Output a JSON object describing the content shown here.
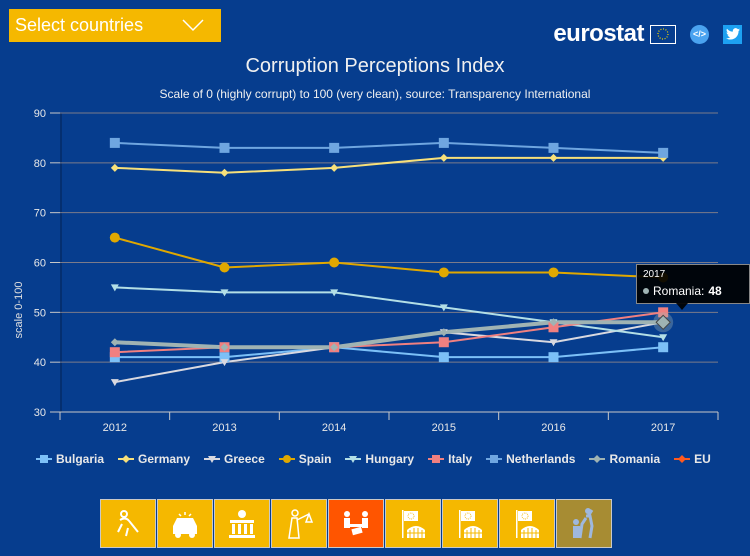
{
  "header": {
    "select_label": "Select countries",
    "brand": "eurostat",
    "embed_label": "</>",
    "title": "Corruption Perceptions Index",
    "subtitle": "Scale of 0 (highly corrupt) to 100 (very clean), source: Transparency International"
  },
  "tooltip": {
    "year": "2017",
    "series": "Romania",
    "value": "48",
    "label": "Romania:"
  },
  "tabs": [
    {
      "icon": "injured-person-icon",
      "state": "normal"
    },
    {
      "icon": "police-car-icon",
      "state": "normal"
    },
    {
      "icon": "bank-euro-icon",
      "state": "normal"
    },
    {
      "icon": "justice-scales-icon",
      "state": "normal"
    },
    {
      "icon": "bribe-table-icon",
      "state": "active"
    },
    {
      "icon": "eu-flag-parliament-icon",
      "state": "normal"
    },
    {
      "icon": "eu-flag-parliament-icon",
      "state": "normal"
    },
    {
      "icon": "eu-flag-parliament-icon",
      "state": "normal"
    },
    {
      "icon": "protest-person-icon",
      "state": "disabled"
    }
  ],
  "chart_data": {
    "type": "line",
    "title": "Corruption Perceptions Index",
    "subtitle": "Scale of 0 (highly corrupt) to 100 (very clean), source: Transparency International",
    "xlabel": "",
    "ylabel": "scale 0-100",
    "ylim": [
      30,
      90
    ],
    "yticks": [
      "30",
      "40",
      "50",
      "60",
      "70",
      "80",
      "90"
    ],
    "ytick_values": [
      30,
      40,
      50,
      60,
      70,
      80,
      90
    ],
    "categories": [
      "2012",
      "2013",
      "2014",
      "2015",
      "2016",
      "2017"
    ],
    "grid": true,
    "legend": "bottom",
    "series": [
      {
        "name": "Bulgaria",
        "color": "#7cc0f7",
        "marker": "square",
        "values": [
          41,
          41,
          43,
          41,
          41,
          43
        ]
      },
      {
        "name": "Germany",
        "color": "#f7e07a",
        "marker": "diamond",
        "values": [
          79,
          78,
          79,
          81,
          81,
          81
        ]
      },
      {
        "name": "Greece",
        "color": "#d9d9e0",
        "marker": "triangle-down",
        "values": [
          36,
          40,
          43,
          46,
          44,
          48
        ]
      },
      {
        "name": "Spain",
        "color": "#e0a800",
        "marker": "circle",
        "values": [
          65,
          59,
          60,
          58,
          58,
          57
        ]
      },
      {
        "name": "Hungary",
        "color": "#b3dfe6",
        "marker": "triangle-down",
        "values": [
          55,
          54,
          54,
          51,
          48,
          45
        ]
      },
      {
        "name": "Italy",
        "color": "#f08080",
        "marker": "square",
        "values": [
          42,
          43,
          43,
          44,
          47,
          50
        ]
      },
      {
        "name": "Netherlands",
        "color": "#6fa6e0",
        "marker": "square",
        "values": [
          84,
          83,
          83,
          84,
          83,
          82
        ]
      },
      {
        "name": "Romania",
        "color": "#9fb3b3",
        "marker": "diamond",
        "values": [
          44,
          43,
          43,
          46,
          48,
          48
        ]
      },
      {
        "name": "EU",
        "color": "#ff5a1f",
        "marker": "diamond",
        "values": []
      }
    ]
  }
}
